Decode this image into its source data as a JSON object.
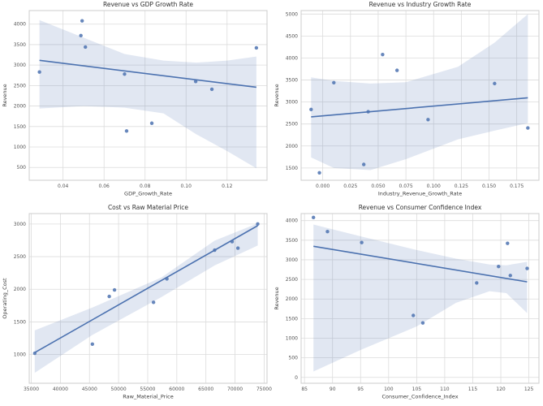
{
  "figure": {
    "name": "Economic drivers regression figure",
    "rows": 2,
    "cols": 2
  },
  "style": {
    "accent": "#4c72b0",
    "band_opacity": 0.17,
    "point_opacity": 0.85,
    "grid_color": "#dcdcdc",
    "spine_color": "#cccccc",
    "title_color": "#2f2f2f",
    "label_color": "#3c3c3c",
    "tick_color": "#555555",
    "background": "#ffffff"
  },
  "chart_data": [
    {
      "type": "scatter",
      "title": "Revenue vs GDP Growth Rate",
      "xlabel": "GDP_Growth_Rate",
      "ylabel": "Revenue",
      "legend_position": "none",
      "grid": true,
      "xlim": [
        0.0235,
        0.1395
      ],
      "ylim": [
        187,
        4332
      ],
      "xticks": {
        "values": [
          0.04,
          0.06,
          0.08,
          0.1,
          0.12
        ],
        "labels": [
          "0.04",
          "0.06",
          "0.08",
          "0.10",
          "0.12"
        ]
      },
      "yticks": {
        "values": [
          500,
          1000,
          1500,
          2000,
          2500,
          3000,
          3500,
          4000
        ],
        "labels": [
          "500",
          "1000",
          "1500",
          "2000",
          "2500",
          "3000",
          "3500",
          "4000"
        ]
      },
      "points": {
        "x": [
          0.0285,
          0.0493,
          0.0487,
          0.0509,
          0.07,
          0.071,
          0.0833,
          0.1047,
          0.1126,
          0.1343
        ],
        "y": [
          2830,
          4080,
          3720,
          3440,
          2780,
          1390,
          1580,
          2600,
          2410,
          3420
        ]
      },
      "trend": {
        "x": [
          0.0285,
          0.1343
        ],
        "y": [
          3116,
          2459
        ]
      },
      "band": {
        "x": [
          0.0285,
          0.05,
          0.07,
          0.089,
          0.105,
          0.12,
          0.1343
        ],
        "top": [
          4100,
          3670,
          3270,
          3110,
          3060,
          3110,
          3210
        ],
        "bottom": [
          1940,
          2000,
          1960,
          1820,
          1310,
          900,
          480
        ]
      }
    },
    {
      "type": "scatter",
      "title": "Revenue vs Industry Growth Rate",
      "xlabel": "Industry_Revenue_Growth_Rate",
      "ylabel": "Revenue",
      "legend_position": "none",
      "grid": true,
      "xlim": [
        -0.0195,
        0.195
      ],
      "ylim": [
        1220,
        5080
      ],
      "xticks": {
        "values": [
          0.0,
          0.025,
          0.05,
          0.075,
          0.1,
          0.125,
          0.15,
          0.175
        ],
        "labels": [
          "0.000",
          "0.025",
          "0.050",
          "0.075",
          "0.100",
          "0.125",
          "0.150",
          "0.175"
        ]
      },
      "yticks": {
        "values": [
          1500,
          2000,
          2500,
          3000,
          3500,
          4000,
          4500,
          5000
        ],
        "labels": [
          "1500",
          "2000",
          "2500",
          "3000",
          "3500",
          "4000",
          "4500",
          "5000"
        ]
      },
      "points": {
        "x": [
          -0.0105,
          -0.003,
          0.01,
          0.037,
          0.041,
          0.054,
          0.067,
          0.095,
          0.155,
          0.185
        ],
        "y": [
          2830,
          1390,
          3440,
          1580,
          2780,
          4080,
          3720,
          2600,
          3420,
          2410
        ]
      },
      "trend": {
        "x": [
          -0.0105,
          0.185
        ],
        "y": [
          2662,
          3095
        ]
      },
      "band": {
        "x": [
          -0.0105,
          0.01,
          0.043,
          0.075,
          0.122,
          0.155,
          0.185
        ],
        "top": [
          3560,
          3480,
          3420,
          3450,
          3800,
          4350,
          5000
        ],
        "bottom": [
          1740,
          1500,
          1450,
          1700,
          2150,
          2350,
          2520
        ]
      }
    },
    {
      "type": "scatter",
      "title": "Cost vs Raw Material Price",
      "xlabel": "Raw_Material_Price",
      "ylabel": "Operating_Cost",
      "legend_position": "none",
      "grid": true,
      "xlim": [
        34650,
        75500
      ],
      "ylim": [
        560,
        3160
      ],
      "xticks": {
        "values": [
          35000,
          40000,
          45000,
          50000,
          55000,
          60000,
          65000,
          70000,
          75000
        ],
        "labels": [
          "35000",
          "40000",
          "45000",
          "50000",
          "55000",
          "60000",
          "65000",
          "70000",
          "75000"
        ]
      },
      "yticks": {
        "values": [
          1000,
          1500,
          2000,
          2500,
          3000
        ],
        "labels": [
          "1000",
          "1500",
          "2000",
          "2500",
          "3000"
        ]
      },
      "points": {
        "x": [
          35600,
          45500,
          48400,
          49300,
          56000,
          58300,
          66500,
          69500,
          70500,
          73900
        ],
        "y": [
          1020,
          1160,
          1890,
          1990,
          1800,
          2160,
          2600,
          2730,
          2630,
          3000
        ]
      },
      "trend": {
        "x": [
          35600,
          73900
        ],
        "y": [
          1030,
          2975
        ]
      },
      "band": {
        "x": [
          35600,
          45500,
          57350,
          66500,
          73900
        ],
        "top": [
          1370,
          1720,
          2180,
          2745,
          3010
        ],
        "bottom": [
          720,
          1300,
          1880,
          2365,
          2670
        ]
      }
    },
    {
      "type": "scatter",
      "title": "Revenue vs Consumer Confidence Index",
      "xlabel": "Consumer_Confidence_Index",
      "ylabel": "Revenue",
      "legend_position": "none",
      "grid": true,
      "xlim": [
        84.4,
        126.8
      ],
      "ylim": [
        -150,
        4180
      ],
      "xticks": {
        "values": [
          85,
          90,
          95,
          100,
          105,
          110,
          115,
          120,
          125
        ],
        "labels": [
          "85",
          "90",
          "95",
          "100",
          "105",
          "110",
          "115",
          "120",
          "125"
        ]
      },
      "yticks": {
        "values": [
          0,
          500,
          1000,
          1500,
          2000,
          2500,
          3000,
          3500,
          4000
        ],
        "labels": [
          "0",
          "500",
          "1000",
          "1500",
          "2000",
          "2500",
          "3000",
          "3500",
          "4000"
        ]
      },
      "points": {
        "x": [
          86.6,
          89.1,
          95.2,
          104.4,
          106.1,
          115.7,
          119.6,
          121.2,
          121.7,
          124.7
        ],
        "y": [
          4080,
          3720,
          3440,
          1580,
          1390,
          2410,
          2830,
          3420,
          2600,
          2780
        ]
      },
      "trend": {
        "x": [
          86.6,
          124.7
        ],
        "y": [
          3345,
          2437
        ]
      },
      "band": {
        "x": [
          86.6,
          95,
          105,
          112,
          118,
          121,
          124.7
        ],
        "top": [
          3900,
          3600,
          3250,
          3030,
          2880,
          2860,
          2950
        ],
        "bottom": [
          150,
          700,
          1300,
          1900,
          2200,
          2150,
          1640
        ]
      }
    }
  ]
}
